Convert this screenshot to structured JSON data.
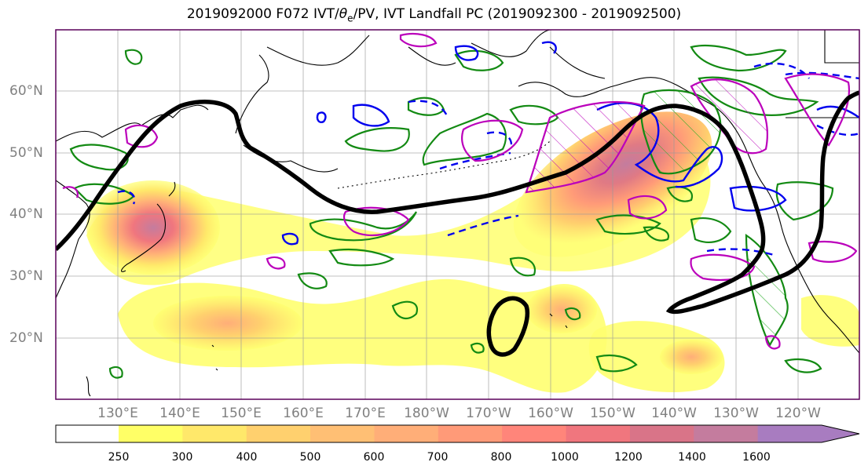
{
  "figure": {
    "title_prefix": "2019092000 F072 IVT/",
    "title_theta": "θ",
    "title_theta_sub": "e",
    "title_suffix": "/PV, IVT Landfall PC (2019092300 - 2019092500)"
  },
  "axes": {
    "lat_labels": [
      "60°N",
      "50°N",
      "40°N",
      "30°N",
      "20°N"
    ],
    "lon_labels": [
      "130°E",
      "140°E",
      "150°E",
      "160°E",
      "170°E",
      "180°W",
      "170°W",
      "160°W",
      "150°W",
      "140°W",
      "130°W",
      "120°W"
    ]
  },
  "colorbar": {
    "levels": [
      "250",
      "300",
      "400",
      "500",
      "600",
      "700",
      "800",
      "1000",
      "1200",
      "1400",
      "1600"
    ],
    "colors": [
      "#ffff66",
      "#ffe86a",
      "#ffd06e",
      "#ffbf74",
      "#ffae78",
      "#ff9a78",
      "#ff857a",
      "#f0767e",
      "#d97488",
      "#c47c9e",
      "#a87cc0"
    ],
    "extend": "max"
  },
  "legend_colors": {
    "ivt_max_fill": "#d87a8c",
    "ivt_low_fill": "#ffff70",
    "theta_contour": "#000000",
    "pv_positive": "#00aa00",
    "pv_negative_green": "#008000",
    "blue_contour": "#0000ff",
    "magenta_contour": "#bb00bb"
  }
}
